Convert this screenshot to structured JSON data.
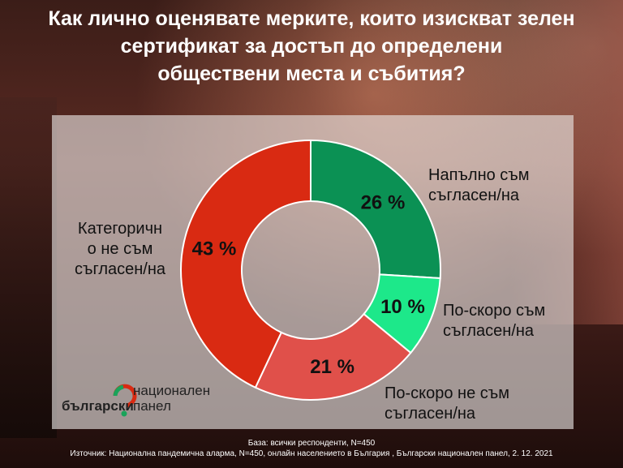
{
  "title": "Как лично оценявате мерките, които изискват зелен\nсертификат за достъп до определени\nобществени места и събития?",
  "chart_data": {
    "type": "pie",
    "subtype": "donut",
    "segments": [
      {
        "label": "Напълно съм\nсъгласен/на",
        "value": 26,
        "display": "26 %",
        "color": "#0b9154"
      },
      {
        "label": "По-скоро съм\nсъгласен/на",
        "value": 10,
        "display": "10 %",
        "color": "#1de88a"
      },
      {
        "label": "По-скоро не съм\nсъгласен/на",
        "value": 21,
        "display": "21 %",
        "color": "#e0504a"
      },
      {
        "label": "Категоричн\nо не съм\nсъгласен/на",
        "value": 43,
        "display": "43 %",
        "color": "#d92a12"
      }
    ]
  },
  "logo": {
    "word1": "български",
    "word2": "национален\nпанел",
    "colors": {
      "green": "#1aa35a",
      "red": "#d92a12"
    }
  },
  "footer": {
    "base": "База: всички респонденти, N=450",
    "source": "Източник: Национална пандемична аларма, N=450, онлайн населението в България , Български национален панел, 2. 12. 2021"
  }
}
